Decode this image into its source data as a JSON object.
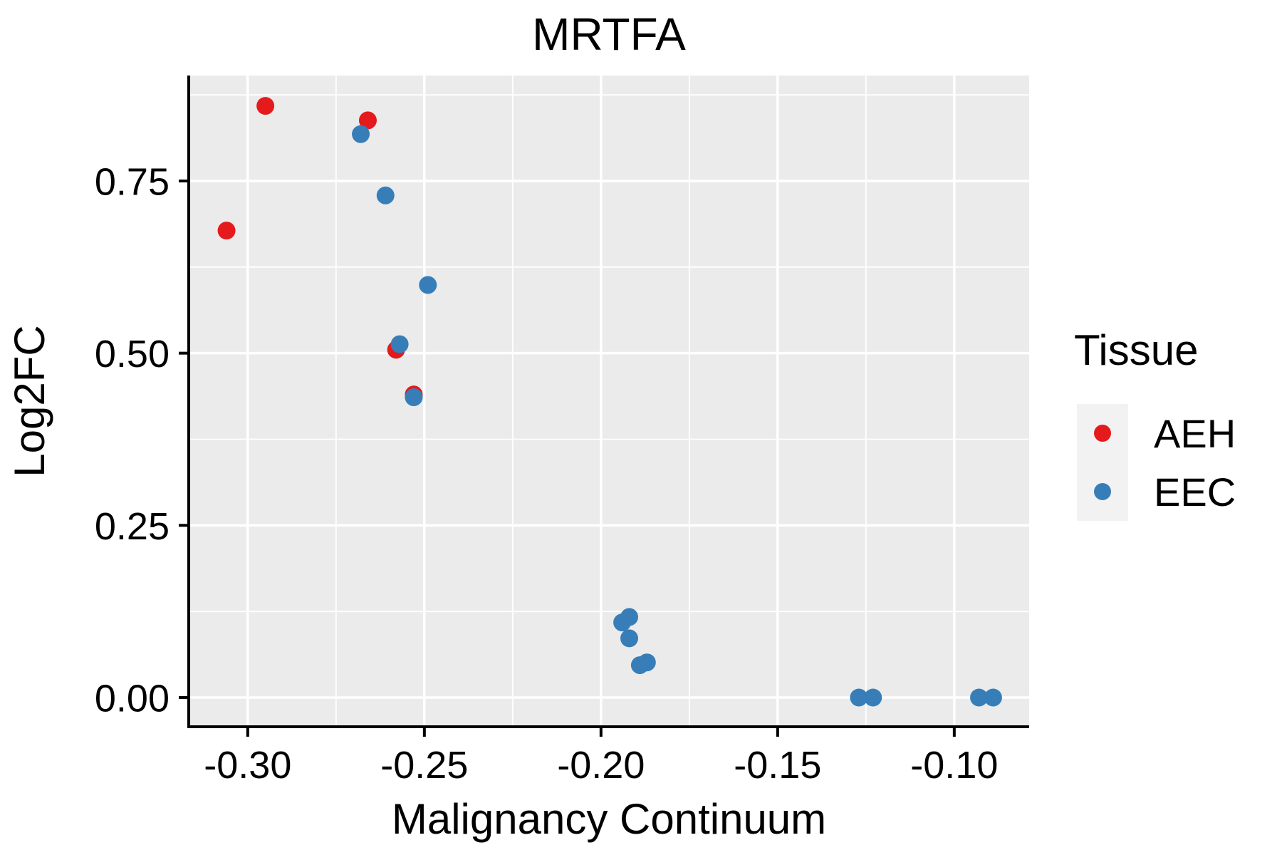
{
  "chart_data": {
    "type": "scatter",
    "title": "MRTFA",
    "xlabel": "Malignancy Continuum",
    "ylabel": "Log2FC",
    "xlim": [
      -0.3167,
      -0.0788
    ],
    "ylim": [
      -0.0424,
      0.9031
    ],
    "x_ticks": [
      -0.3,
      -0.25,
      -0.2,
      -0.15,
      -0.1
    ],
    "x_tick_labels": [
      "-0.30",
      "-0.25",
      "-0.20",
      "-0.15",
      "-0.10"
    ],
    "y_ticks": [
      0.0,
      0.25,
      0.5,
      0.75
    ],
    "y_tick_labels": [
      "0.00",
      "0.25",
      "0.50",
      "0.75"
    ],
    "x_minor_ticks": [
      -0.275,
      -0.225,
      -0.175,
      -0.125
    ],
    "y_minor_ticks": [
      0.125,
      0.375,
      0.625,
      0.875
    ],
    "grid": {
      "on": true,
      "major_color": "#ffffff",
      "minor_color": "#ffffff"
    },
    "panel_bg": "#ebebeb",
    "axis_color": "#000000",
    "point_radius": 12.5,
    "legend": {
      "title": "Tissue",
      "position": "right",
      "key_bg": "#f2f2f2",
      "entries": [
        {
          "label": "AEH",
          "color": "#e41a1c"
        },
        {
          "label": "EEC",
          "color": "#377eb8"
        }
      ]
    },
    "series": [
      {
        "name": "AEH",
        "color": "#e41a1c",
        "points": [
          [
            -0.295,
            0.859
          ],
          [
            -0.266,
            0.838
          ],
          [
            -0.306,
            0.678
          ],
          [
            -0.258,
            0.505
          ],
          [
            -0.253,
            0.44
          ]
        ]
      },
      {
        "name": "EEC",
        "color": "#377eb8",
        "points": [
          [
            -0.268,
            0.818
          ],
          [
            -0.261,
            0.729
          ],
          [
            -0.249,
            0.599
          ],
          [
            -0.257,
            0.513
          ],
          [
            -0.253,
            0.436
          ],
          [
            -0.194,
            0.109
          ],
          [
            -0.192,
            0.117
          ],
          [
            -0.192,
            0.086
          ],
          [
            -0.189,
            0.047
          ],
          [
            -0.187,
            0.051
          ],
          [
            -0.127,
            0.0
          ],
          [
            -0.123,
            0.0
          ],
          [
            -0.093,
            0.0
          ],
          [
            -0.089,
            0.0
          ]
        ]
      }
    ]
  }
}
